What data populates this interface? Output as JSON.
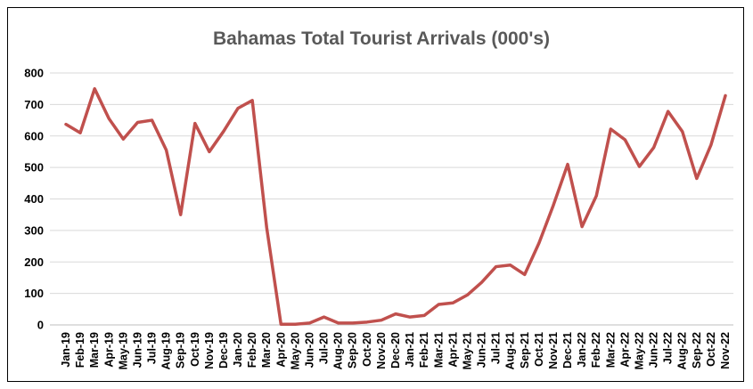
{
  "chart_data": {
    "type": "line",
    "title": "Bahamas Total Tourist Arrivals (000's)",
    "xlabel": "",
    "ylabel": "",
    "ylim": [
      0,
      800
    ],
    "yticks": [
      "0",
      "100",
      "200",
      "300",
      "400",
      "500",
      "600",
      "700",
      "800"
    ],
    "grid": true,
    "legend": "none",
    "categories": [
      "Jan-19",
      "Feb-19",
      "Mar-19",
      "Apr-19",
      "May-19",
      "Jun-19",
      "Jul-19",
      "Aug-19",
      "Sep-19",
      "Oct-19",
      "Nov-19",
      "Dec-19",
      "Jan-20",
      "Feb-20",
      "Mar-20",
      "Apr-20",
      "May-20",
      "Jun-20",
      "Jul-20",
      "Aug-20",
      "Sep-20",
      "Oct-20",
      "Nov-20",
      "Dec-20",
      "Jan-21",
      "Feb-21",
      "Mar-21",
      "Apr-21",
      "May-21",
      "Jun-21",
      "Jul-21",
      "Aug-21",
      "Sep-21",
      "Oct-21",
      "Nov-21",
      "Dec-21",
      "Jan-22",
      "Feb-22",
      "Mar-22",
      "Apr-22",
      "May-22",
      "Jun-22",
      "Jul-22",
      "Aug-22",
      "Sep-22",
      "Oct-22",
      "Nov-22"
    ],
    "series": [
      {
        "color": "#c0504d",
        "values": [
          637,
          610,
          750,
          655,
          590,
          643,
          650,
          555,
          350,
          640,
          550,
          615,
          688,
          713,
          310,
          2,
          2,
          6,
          25,
          6,
          6,
          9,
          15,
          35,
          25,
          30,
          65,
          70,
          95,
          135,
          185,
          190,
          160,
          260,
          380,
          510,
          312,
          410,
          622,
          588,
          503,
          563,
          678,
          614,
          465,
          572,
          728
        ]
      }
    ]
  }
}
